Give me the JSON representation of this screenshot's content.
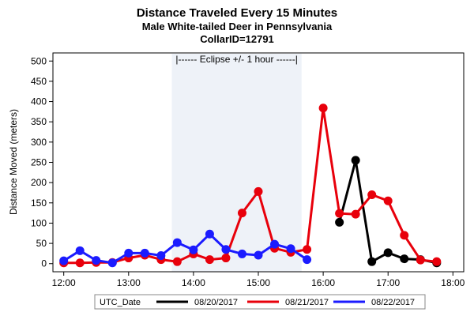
{
  "chart_data": {
    "type": "line",
    "title": "Distance Traveled Every 15 Minutes",
    "subtitle": "Male White-tailed Deer in Pennsylvania",
    "subtitle2": "CollarID=12791",
    "xlabel": "",
    "ylabel": "Distance Moved (meters)",
    "xlim": [
      "11:50",
      "18:10"
    ],
    "ylim": [
      -20,
      520
    ],
    "x_ticks": [
      "12:00",
      "13:00",
      "14:00",
      "15:00",
      "16:00",
      "17:00",
      "18:00"
    ],
    "y_ticks": [
      0,
      50,
      100,
      150,
      200,
      250,
      300,
      350,
      400,
      450,
      500
    ],
    "grid": false,
    "annotation": {
      "label": "|------  Eclipse +/- 1 hour  ------|",
      "x_start": "13:40",
      "x_end": "15:40"
    },
    "legend": {
      "title": "UTC_Date",
      "position": "bottom"
    },
    "series": [
      {
        "name": "08/20/2017",
        "color": "#000000",
        "x": [
          "16:15",
          "16:30",
          "16:45",
          "17:00",
          "17:15",
          "17:30",
          "17:45"
        ],
        "y": [
          102,
          255,
          5,
          27,
          12,
          10,
          2
        ]
      },
      {
        "name": "08/21/2017",
        "color": "#e8000b",
        "x": [
          "12:00",
          "12:15",
          "12:30",
          "12:45",
          "13:00",
          "13:15",
          "13:30",
          "13:45",
          "14:00",
          "14:15",
          "14:30",
          "14:45",
          "15:00",
          "15:15",
          "15:30",
          "15:45",
          "16:00",
          "16:15",
          "16:30",
          "16:45",
          "17:00",
          "17:15",
          "17:30",
          "17:45"
        ],
        "y": [
          2,
          2,
          3,
          3,
          14,
          21,
          10,
          5,
          24,
          10,
          14,
          125,
          178,
          38,
          28,
          35,
          384,
          124,
          122,
          170,
          155,
          70,
          9,
          5
        ]
      },
      {
        "name": "08/22/2017",
        "color": "#1b1bff",
        "x": [
          "12:00",
          "12:15",
          "12:30",
          "12:45",
          "13:00",
          "13:15",
          "13:30",
          "13:45",
          "14:00",
          "14:15",
          "14:30",
          "14:45",
          "15:00",
          "15:15",
          "15:30",
          "15:45"
        ],
        "y": [
          7,
          32,
          8,
          2,
          26,
          26,
          20,
          52,
          34,
          73,
          35,
          24,
          21,
          48,
          37,
          10
        ]
      }
    ]
  }
}
